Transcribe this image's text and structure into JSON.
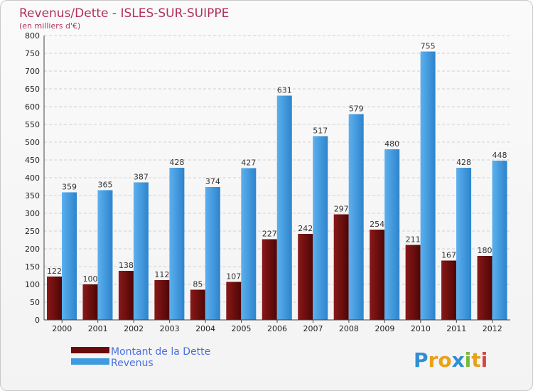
{
  "colors": {
    "dette": "#6b0a0a",
    "revenus": "#3f9be0",
    "title": "#b0305e",
    "legend_text": "#4a6fe0"
  },
  "chart_data": {
    "type": "bar",
    "title": "Revenus/Dette - ISLES-SUR-SUIPPE",
    "subtitle": "(en milliers d'€)",
    "categories": [
      "2000",
      "2001",
      "2002",
      "2003",
      "2004",
      "2005",
      "2006",
      "2007",
      "2008",
      "2009",
      "2010",
      "2011",
      "2012"
    ],
    "series": [
      {
        "name": "Montant de la Dette",
        "values": [
          122,
          100,
          138,
          112,
          85,
          107,
          227,
          242,
          297,
          254,
          211,
          167,
          180
        ]
      },
      {
        "name": "Revenus",
        "values": [
          359,
          365,
          387,
          428,
          374,
          427,
          631,
          517,
          579,
          480,
          755,
          428,
          448
        ]
      }
    ],
    "ylim": [
      0,
      800
    ],
    "yticks": [
      0,
      50,
      100,
      150,
      200,
      250,
      300,
      350,
      400,
      450,
      500,
      550,
      600,
      650,
      700,
      750,
      800
    ],
    "grid": true,
    "legend": "bottom-left"
  },
  "brand": {
    "letters": [
      "P",
      "r",
      "o",
      "x",
      "i",
      "t",
      "i"
    ],
    "colors": [
      "#2f8fd6",
      "#e8a21a",
      "#e8a21a",
      "#2f8fd6",
      "#7bb83a",
      "#e8a21a",
      "#d64545"
    ]
  }
}
